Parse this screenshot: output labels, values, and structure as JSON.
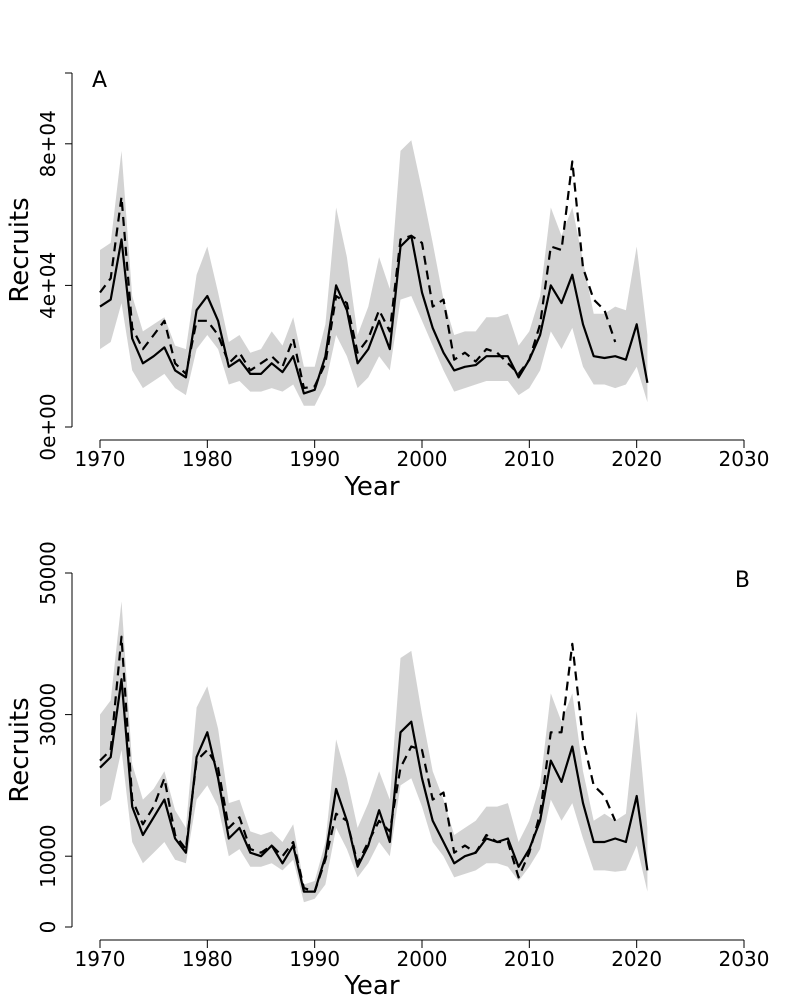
{
  "chart_data": [
    {
      "type": "line",
      "panel_label": "A",
      "xlabel": "Year",
      "ylabel": "Recruits",
      "xlim": [
        1970,
        2030
      ],
      "ylim": [
        0,
        100000
      ],
      "x_ticks": [
        1970,
        1980,
        1990,
        2000,
        2010,
        2020,
        2030
      ],
      "x_tick_labels": [
        "1970",
        "1980",
        "1990",
        "2000",
        "2010",
        "2020",
        "2030"
      ],
      "y_ticks": [
        0,
        40000,
        80000
      ],
      "y_tick_labels": [
        "0e+00",
        "4e+04",
        "8e+04"
      ],
      "colors": {
        "band": "#d3d3d3",
        "line": "#000000"
      },
      "series": [
        {
          "name": "confidence band",
          "style": "band",
          "x": [
            1970,
            1971,
            1972,
            1973,
            1974,
            1975,
            1976,
            1977,
            1978,
            1979,
            1980,
            1981,
            1982,
            1983,
            1984,
            1985,
            1986,
            1987,
            1988,
            1989,
            1990,
            1991,
            1992,
            1993,
            1994,
            1995,
            1996,
            1997,
            1998,
            1999,
            2000,
            2001,
            2002,
            2003,
            2004,
            2005,
            2006,
            2007,
            2008,
            2009,
            2010,
            2011,
            2012,
            2013,
            2014,
            2015,
            2016,
            2017,
            2018,
            2019,
            2020,
            2021
          ],
          "lower": [
            22000,
            24000,
            35000,
            16000,
            11000,
            13000,
            15000,
            11000,
            9000,
            22000,
            26000,
            22000,
            12000,
            13000,
            10000,
            10000,
            11000,
            10000,
            12000,
            6000,
            6000,
            12000,
            26000,
            20000,
            11000,
            14000,
            20000,
            16000,
            36000,
            37000,
            30000,
            23000,
            16000,
            10000,
            11000,
            12000,
            13000,
            13000,
            13000,
            9000,
            11000,
            16000,
            27000,
            22000,
            28000,
            17000,
            12000,
            12000,
            11000,
            12000,
            17000,
            7000
          ],
          "upper": [
            50000,
            52000,
            78000,
            37000,
            27000,
            29000,
            31000,
            23000,
            22000,
            43000,
            51000,
            38000,
            24000,
            26000,
            21000,
            22000,
            27000,
            23000,
            31000,
            17000,
            17000,
            29000,
            62000,
            48000,
            26000,
            34000,
            48000,
            39000,
            78000,
            81000,
            67000,
            52000,
            36000,
            26000,
            27000,
            27000,
            31000,
            31000,
            32000,
            23000,
            27000,
            37000,
            62000,
            54000,
            62000,
            47000,
            32000,
            32000,
            34000,
            33000,
            51000,
            26000
          ]
        },
        {
          "name": "solid",
          "style": "solid",
          "x": [
            1970,
            1971,
            1972,
            1973,
            1974,
            1975,
            1976,
            1977,
            1978,
            1979,
            1980,
            1981,
            1982,
            1983,
            1984,
            1985,
            1986,
            1987,
            1988,
            1989,
            1990,
            1991,
            1992,
            1993,
            1994,
            1995,
            1996,
            1997,
            1998,
            1999,
            2000,
            2001,
            2002,
            2003,
            2004,
            2005,
            2006,
            2007,
            2008,
            2009,
            2010,
            2011,
            2012,
            2013,
            2014,
            2015,
            2016,
            2017,
            2018,
            2019,
            2020,
            2021
          ],
          "values": [
            34000,
            36000,
            53000,
            25000,
            18000,
            20000,
            22500,
            16000,
            14000,
            33000,
            37000,
            30000,
            17000,
            19000,
            15000,
            15000,
            18000,
            15500,
            20000,
            9500,
            10500,
            20000,
            40000,
            33000,
            18000,
            22000,
            30000,
            22000,
            51000,
            54000,
            38000,
            28000,
            21000,
            16000,
            17000,
            17500,
            20000,
            20000,
            20000,
            14000,
            19000,
            26000,
            40000,
            35000,
            43000,
            29000,
            20000,
            19500,
            20000,
            19000,
            29000,
            12500
          ]
        },
        {
          "name": "dashed",
          "style": "dashed",
          "x": [
            1970,
            1971,
            1972,
            1973,
            1974,
            1975,
            1976,
            1977,
            1978,
            1979,
            1980,
            1981,
            1982,
            1983,
            1984,
            1985,
            1986,
            1987,
            1988,
            1989,
            1990,
            1991,
            1992,
            1993,
            1994,
            1995,
            1996,
            1997,
            1998,
            1999,
            2000,
            2001,
            2002,
            2003,
            2004,
            2005,
            2006,
            2007,
            2008,
            2009,
            2010,
            2011,
            2012,
            2013,
            2014,
            2015,
            2016,
            2017,
            2018
          ],
          "values": [
            38000,
            42000,
            65000,
            28000,
            22000,
            26000,
            30000,
            18000,
            15000,
            30000,
            30000,
            26000,
            18000,
            21000,
            16000,
            18000,
            20000,
            17000,
            25000,
            11000,
            11500,
            18000,
            37000,
            35000,
            21000,
            25000,
            33000,
            27000,
            53000,
            54000,
            52000,
            34000,
            36000,
            19000,
            21000,
            18500,
            22000,
            21000,
            18000,
            15000,
            19000,
            29000,
            51000,
            50000,
            75000,
            45000,
            36000,
            33000,
            24000
          ]
        }
      ]
    },
    {
      "type": "line",
      "panel_label": "B",
      "xlabel": "Year",
      "ylabel": "Recruits",
      "xlim": [
        1970,
        2030
      ],
      "ylim": [
        0,
        50000
      ],
      "x_ticks": [
        1970,
        1980,
        1990,
        2000,
        2010,
        2020,
        2030
      ],
      "x_tick_labels": [
        "1970",
        "1980",
        "1990",
        "2000",
        "2010",
        "2020",
        "2030"
      ],
      "y_ticks": [
        0,
        10000,
        30000,
        50000
      ],
      "y_tick_labels": [
        "0",
        "10000",
        "30000",
        "50000"
      ],
      "colors": {
        "band": "#d3d3d3",
        "line": "#000000"
      },
      "series": [
        {
          "name": "confidence band",
          "style": "band",
          "x": [
            1970,
            1971,
            1972,
            1973,
            1974,
            1975,
            1976,
            1977,
            1978,
            1979,
            1980,
            1981,
            1982,
            1983,
            1984,
            1985,
            1986,
            1987,
            1988,
            1989,
            1990,
            1991,
            1992,
            1993,
            1994,
            1995,
            1996,
            1997,
            1998,
            1999,
            2000,
            2001,
            2002,
            2003,
            2004,
            2005,
            2006,
            2007,
            2008,
            2009,
            2010,
            2011,
            2012,
            2013,
            2014,
            2015,
            2016,
            2017,
            2018,
            2019,
            2020,
            2021
          ],
          "lower": [
            17000,
            18000,
            25000,
            12000,
            9000,
            10500,
            12000,
            9500,
            9000,
            18000,
            20000,
            17000,
            10000,
            11000,
            8500,
            8500,
            9000,
            8000,
            9500,
            3500,
            4000,
            6000,
            14000,
            11000,
            7000,
            9000,
            12000,
            10000,
            20000,
            21000,
            17000,
            12000,
            10000,
            7000,
            7500,
            8000,
            9000,
            9000,
            8500,
            6500,
            8500,
            11000,
            18000,
            15000,
            17500,
            12500,
            8000,
            8000,
            7800,
            8000,
            11500,
            5000
          ]
        },
        {
          "name": "upper band",
          "style": "band-upper",
          "x": [
            1970,
            1971,
            1972,
            1973,
            1974,
            1975,
            1976,
            1977,
            1978,
            1979,
            1980,
            1981,
            1982,
            1983,
            1984,
            1985,
            1986,
            1987,
            1988,
            1989,
            1990,
            1991,
            1992,
            1993,
            1994,
            1995,
            1996,
            1997,
            1998,
            1999,
            2000,
            2001,
            2002,
            2003,
            2004,
            2005,
            2006,
            2007,
            2008,
            2009,
            2010,
            2011,
            2012,
            2013,
            2014,
            2015,
            2016,
            2017,
            2018,
            2019,
            2020,
            2021
          ],
          "values": [
            30000,
            32000,
            46000,
            23000,
            18000,
            19500,
            22000,
            16500,
            14000,
            31000,
            34000,
            28000,
            17500,
            18000,
            13500,
            13000,
            13500,
            12000,
            14500,
            6000,
            6500,
            12000,
            26500,
            21000,
            14000,
            17500,
            22000,
            18000,
            38000,
            39000,
            30000,
            22000,
            18000,
            13000,
            14000,
            15000,
            17000,
            17000,
            17500,
            12000,
            15000,
            20000,
            33000,
            29000,
            33000,
            22000,
            15000,
            16000,
            15000,
            16000,
            30500,
            14000
          ]
        },
        {
          "name": "solid",
          "style": "solid",
          "x": [
            1970,
            1971,
            1972,
            1973,
            1974,
            1975,
            1976,
            1977,
            1978,
            1979,
            1980,
            1981,
            1982,
            1983,
            1984,
            1985,
            1986,
            1987,
            1988,
            1989,
            1990,
            1991,
            1992,
            1993,
            1994,
            1995,
            1996,
            1997,
            1998,
            1999,
            2000,
            2001,
            2002,
            2003,
            2004,
            2005,
            2006,
            2007,
            2008,
            2009,
            2010,
            2011,
            2012,
            2013,
            2014,
            2015,
            2016,
            2017,
            2018,
            2019,
            2020,
            2021
          ],
          "values": [
            22500,
            24000,
            35000,
            17000,
            13000,
            15500,
            18000,
            12500,
            10500,
            24000,
            27500,
            21000,
            12500,
            14000,
            10500,
            10000,
            11500,
            9000,
            11500,
            5000,
            5000,
            10000,
            19500,
            15000,
            8500,
            11500,
            16500,
            12000,
            27500,
            29000,
            21000,
            15000,
            12000,
            9000,
            10000,
            10500,
            12500,
            12000,
            12500,
            8500,
            11000,
            15000,
            23500,
            20500,
            25500,
            17500,
            12000,
            12000,
            12500,
            12000,
            18500,
            8000
          ]
        },
        {
          "name": "dashed",
          "style": "dashed",
          "x": [
            1970,
            1971,
            1972,
            1973,
            1974,
            1975,
            1976,
            1977,
            1978,
            1979,
            1980,
            1981,
            1982,
            1983,
            1984,
            1985,
            1986,
            1987,
            1988,
            1989,
            1990,
            1991,
            1992,
            1993,
            1994,
            1995,
            1996,
            1997,
            1998,
            1999,
            2000,
            2001,
            2002,
            2003,
            2004,
            2005,
            2006,
            2007,
            2008,
            2009,
            2010,
            2011,
            2012,
            2013,
            2014,
            2015,
            2016,
            2017,
            2018
          ],
          "values": [
            23500,
            25000,
            41000,
            18000,
            14500,
            17000,
            21000,
            13000,
            11000,
            23500,
            25000,
            22500,
            14000,
            15500,
            11000,
            10500,
            11500,
            10000,
            12000,
            5500,
            5000,
            9500,
            16000,
            15000,
            9000,
            12000,
            15000,
            13500,
            22500,
            25500,
            25000,
            18000,
            19000,
            10500,
            11500,
            10500,
            13000,
            12000,
            12000,
            7000,
            10500,
            16000,
            27500,
            27500,
            40000,
            26500,
            20000,
            18500,
            15000
          ]
        }
      ]
    }
  ]
}
